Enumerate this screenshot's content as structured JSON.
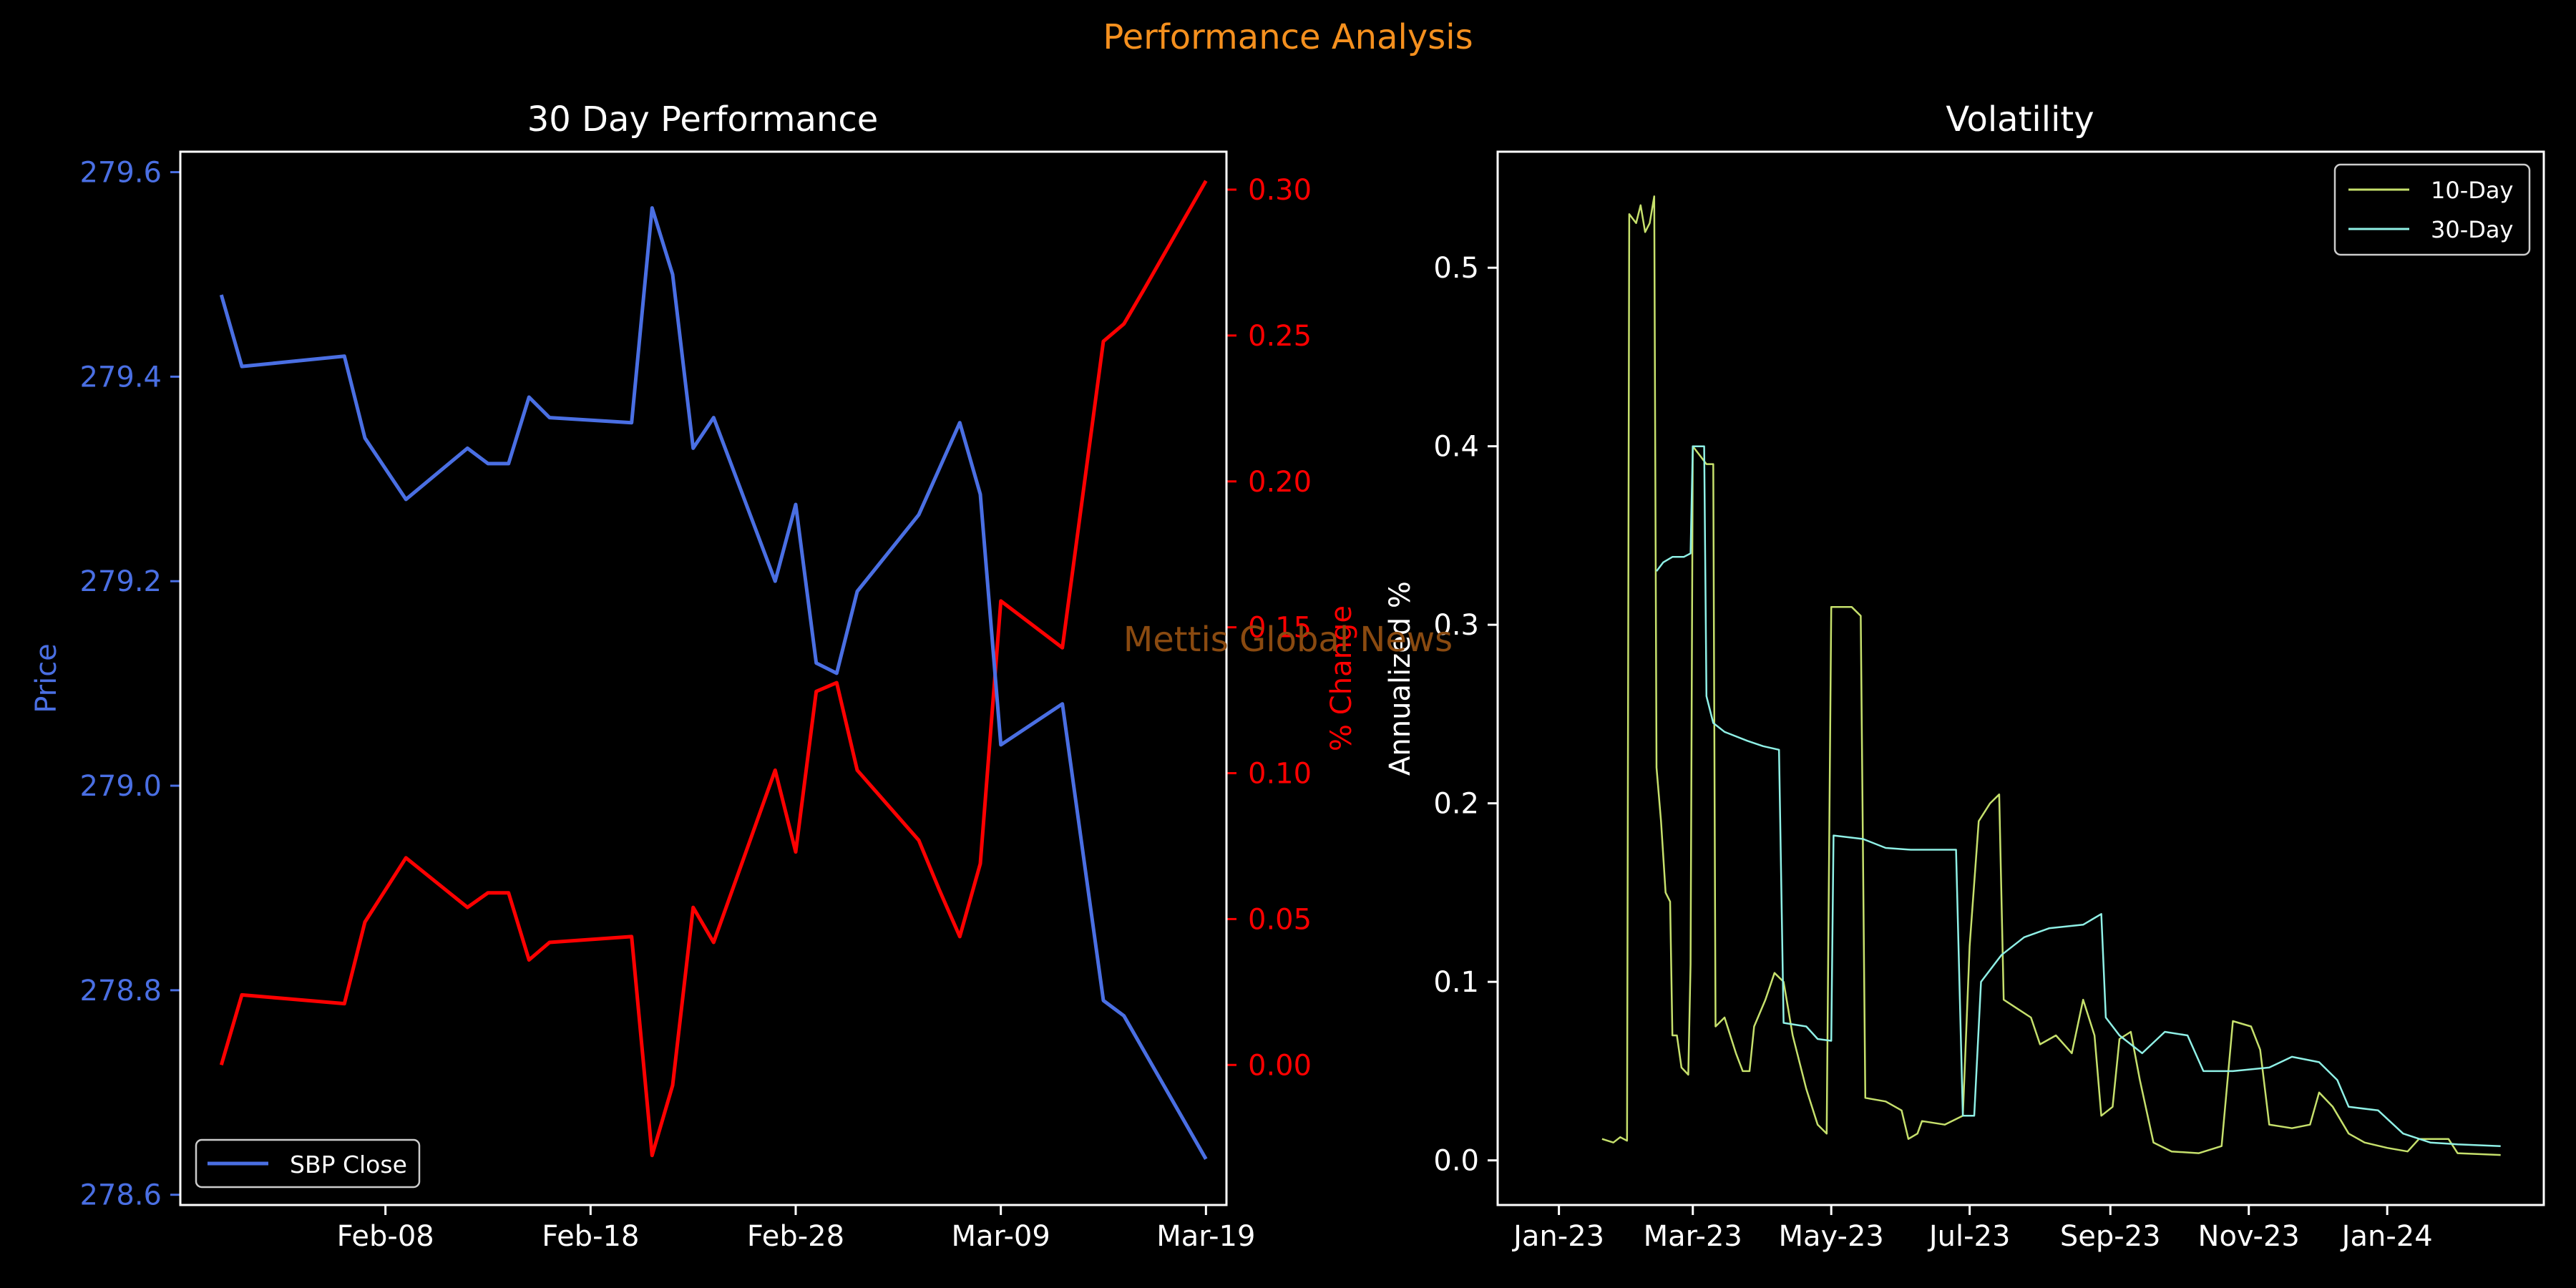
{
  "figure": {
    "suptitle": "Performance Analysis",
    "watermark": "Mettis Global News",
    "colors": {
      "background": "#000000",
      "suptitle": "#f5901e",
      "watermark": "#8a4a10",
      "price": "#4a6fe3",
      "pct_change": "#ff0000",
      "axes": "#ffffff",
      "vol10": "#c6e06c",
      "vol30": "#8ff0e6"
    }
  },
  "chart_data": [
    {
      "type": "line",
      "title": "30 Day Performance",
      "xlabel": "",
      "ylabel": "Price",
      "ylabel_right": "% Change",
      "x_ticks": [
        "Feb-08",
        "Feb-18",
        "Feb-28",
        "Mar-09",
        "Mar-19"
      ],
      "y_ticks": [
        "278.6",
        "278.8",
        "279.0",
        "279.2",
        "279.4",
        "279.6"
      ],
      "y_right_ticks": [
        "0.00",
        "0.05",
        "0.10",
        "0.15",
        "0.20",
        "0.25",
        "0.30"
      ],
      "xlim": [
        "2024-01-29",
        "2024-03-20"
      ],
      "ylim": [
        278.59,
        279.62
      ],
      "y_right_lim": [
        -0.048,
        0.313
      ],
      "legend": {
        "position": "lower-left",
        "entries": [
          "SBP Close"
        ]
      },
      "x": [
        "2024-01-31",
        "2024-02-01",
        "2024-02-06",
        "2024-02-07",
        "2024-02-09",
        "2024-02-12",
        "2024-02-13",
        "2024-02-14",
        "2024-02-15",
        "2024-02-16",
        "2024-02-20",
        "2024-02-21",
        "2024-02-22",
        "2024-02-23",
        "2024-02-24",
        "2024-02-27",
        "2024-02-28",
        "2024-02-29",
        "2024-03-01",
        "2024-03-02",
        "2024-03-05",
        "2024-03-06",
        "2024-03-07",
        "2024-03-08",
        "2024-03-09",
        "2024-03-12",
        "2024-03-14",
        "2024-03-15",
        "2024-03-16",
        "2024-03-19"
      ],
      "series": [
        {
          "name": "SBP Close",
          "axis": "left",
          "values": [
            279.48,
            279.41,
            279.42,
            279.34,
            279.28,
            279.33,
            279.315,
            279.315,
            279.38,
            279.36,
            279.355,
            279.565,
            279.5,
            279.33,
            279.36,
            279.2,
            279.275,
            279.12,
            279.11,
            279.19,
            279.265,
            279.31,
            279.355,
            279.285,
            279.04,
            279.08,
            278.79,
            278.775,
            278.74,
            278.635
          ]
        },
        {
          "axis": "right",
          "values": [
            0.0,
            0.024,
            0.021,
            0.049,
            0.071,
            0.054,
            0.059,
            0.059,
            0.036,
            0.042,
            0.044,
            -0.031,
            -0.007,
            0.054,
            0.042,
            0.101,
            0.073,
            0.128,
            0.131,
            0.101,
            0.077,
            0.06,
            0.044,
            0.069,
            0.159,
            0.143,
            0.248,
            0.254,
            0.266,
            0.303
          ]
        }
      ]
    },
    {
      "type": "line",
      "title": "Volatility",
      "xlabel": "",
      "ylabel": "Annualized %",
      "x_ticks": [
        "Jan-23",
        "Mar-23",
        "May-23",
        "Jul-23",
        "Sep-23",
        "Nov-23",
        "Jan-24"
      ],
      "y_ticks": [
        "0.0",
        "0.1",
        "0.2",
        "0.3",
        "0.4",
        "0.5"
      ],
      "xlim": [
        "2022-12-05",
        "2024-03-10"
      ],
      "ylim": [
        -0.025,
        0.565
      ],
      "legend": {
        "position": "top-right",
        "entries": [
          "10-Day",
          "30-Day"
        ]
      },
      "series": [
        {
          "name": "10-Day",
          "points": [
            [
              "2023-01-20",
              0.012
            ],
            [
              "2023-01-25",
              0.01
            ],
            [
              "2023-01-28",
              0.013
            ],
            [
              "2023-01-31",
              0.011
            ],
            [
              "2023-02-01",
              0.53
            ],
            [
              "2023-02-04",
              0.525
            ],
            [
              "2023-02-06",
              0.535
            ],
            [
              "2023-02-08",
              0.52
            ],
            [
              "2023-02-10",
              0.525
            ],
            [
              "2023-02-12",
              0.54
            ],
            [
              "2023-02-13",
              0.22
            ],
            [
              "2023-02-15",
              0.19
            ],
            [
              "2023-02-17",
              0.15
            ],
            [
              "2023-02-19",
              0.145
            ],
            [
              "2023-02-20",
              0.07
            ],
            [
              "2023-02-22",
              0.07
            ],
            [
              "2023-02-24",
              0.052
            ],
            [
              "2023-02-27",
              0.048
            ],
            [
              "2023-02-28",
              0.11
            ],
            [
              "2023-03-01",
              0.4
            ],
            [
              "2023-03-04",
              0.395
            ],
            [
              "2023-03-07",
              0.39
            ],
            [
              "2023-03-10",
              0.39
            ],
            [
              "2023-03-11",
              0.075
            ],
            [
              "2023-03-15",
              0.08
            ],
            [
              "2023-03-20",
              0.06
            ],
            [
              "2023-03-23",
              0.05
            ],
            [
              "2023-03-26",
              0.05
            ],
            [
              "2023-03-28",
              0.075
            ],
            [
              "2023-04-02",
              0.09
            ],
            [
              "2023-04-06",
              0.105
            ],
            [
              "2023-04-10",
              0.1
            ],
            [
              "2023-04-14",
              0.07
            ],
            [
              "2023-04-20",
              0.04
            ],
            [
              "2023-04-25",
              0.02
            ],
            [
              "2023-04-29",
              0.015
            ],
            [
              "2023-05-01",
              0.31
            ],
            [
              "2023-05-10",
              0.31
            ],
            [
              "2023-05-14",
              0.305
            ],
            [
              "2023-05-16",
              0.035
            ],
            [
              "2023-05-25",
              0.033
            ],
            [
              "2023-06-01",
              0.028
            ],
            [
              "2023-06-04",
              0.012
            ],
            [
              "2023-06-08",
              0.015
            ],
            [
              "2023-06-10",
              0.022
            ],
            [
              "2023-06-20",
              0.02
            ],
            [
              "2023-06-28",
              0.025
            ],
            [
              "2023-07-01",
              0.12
            ],
            [
              "2023-07-05",
              0.19
            ],
            [
              "2023-07-10",
              0.2
            ],
            [
              "2023-07-14",
              0.205
            ],
            [
              "2023-07-16",
              0.09
            ],
            [
              "2023-07-22",
              0.085
            ],
            [
              "2023-07-28",
              0.08
            ],
            [
              "2023-08-01",
              0.065
            ],
            [
              "2023-08-08",
              0.07
            ],
            [
              "2023-08-15",
              0.06
            ],
            [
              "2023-08-20",
              0.09
            ],
            [
              "2023-08-25",
              0.07
            ],
            [
              "2023-08-28",
              0.025
            ],
            [
              "2023-09-02",
              0.03
            ],
            [
              "2023-09-05",
              0.068
            ],
            [
              "2023-09-10",
              0.072
            ],
            [
              "2023-09-14",
              0.045
            ],
            [
              "2023-09-20",
              0.01
            ],
            [
              "2023-09-28",
              0.005
            ],
            [
              "2023-10-10",
              0.004
            ],
            [
              "2023-10-20",
              0.008
            ],
            [
              "2023-10-25",
              0.078
            ],
            [
              "2023-11-02",
              0.075
            ],
            [
              "2023-11-06",
              0.062
            ],
            [
              "2023-11-10",
              0.02
            ],
            [
              "2023-11-20",
              0.018
            ],
            [
              "2023-11-28",
              0.02
            ],
            [
              "2023-12-02",
              0.038
            ],
            [
              "2023-12-08",
              0.03
            ],
            [
              "2023-12-15",
              0.015
            ],
            [
              "2023-12-22",
              0.01
            ],
            [
              "2024-01-01",
              0.007
            ],
            [
              "2024-01-10",
              0.005
            ],
            [
              "2024-01-15",
              0.012
            ],
            [
              "2024-01-28",
              0.012
            ],
            [
              "2024-02-01",
              0.004
            ],
            [
              "2024-02-20",
              0.003
            ]
          ]
        },
        {
          "name": "30-Day",
          "points": [
            [
              "2023-02-13",
              0.33
            ],
            [
              "2023-02-16",
              0.335
            ],
            [
              "2023-02-20",
              0.338
            ],
            [
              "2023-02-25",
              0.338
            ],
            [
              "2023-02-28",
              0.34
            ],
            [
              "2023-03-01",
              0.4
            ],
            [
              "2023-03-06",
              0.4
            ],
            [
              "2023-03-07",
              0.26
            ],
            [
              "2023-03-10",
              0.245
            ],
            [
              "2023-03-15",
              0.24
            ],
            [
              "2023-03-25",
              0.235
            ],
            [
              "2023-04-01",
              0.232
            ],
            [
              "2023-04-08",
              0.23
            ],
            [
              "2023-04-10",
              0.077
            ],
            [
              "2023-04-20",
              0.075
            ],
            [
              "2023-04-25",
              0.068
            ],
            [
              "2023-05-01",
              0.067
            ],
            [
              "2023-05-02",
              0.182
            ],
            [
              "2023-05-15",
              0.18
            ],
            [
              "2023-05-25",
              0.175
            ],
            [
              "2023-06-05",
              0.174
            ],
            [
              "2023-06-25",
              0.174
            ],
            [
              "2023-06-28",
              0.025
            ],
            [
              "2023-07-03",
              0.025
            ],
            [
              "2023-07-06",
              0.1
            ],
            [
              "2023-07-15",
              0.115
            ],
            [
              "2023-07-25",
              0.125
            ],
            [
              "2023-08-05",
              0.13
            ],
            [
              "2023-08-20",
              0.132
            ],
            [
              "2023-08-28",
              0.138
            ],
            [
              "2023-08-30",
              0.08
            ],
            [
              "2023-09-05",
              0.07
            ],
            [
              "2023-09-15",
              0.06
            ],
            [
              "2023-09-25",
              0.072
            ],
            [
              "2023-10-05",
              0.07
            ],
            [
              "2023-10-12",
              0.05
            ],
            [
              "2023-10-25",
              0.05
            ],
            [
              "2023-11-10",
              0.052
            ],
            [
              "2023-11-20",
              0.058
            ],
            [
              "2023-12-02",
              0.055
            ],
            [
              "2023-12-10",
              0.045
            ],
            [
              "2023-12-15",
              0.03
            ],
            [
              "2023-12-28",
              0.028
            ],
            [
              "2024-01-08",
              0.015
            ],
            [
              "2024-01-20",
              0.01
            ],
            [
              "2024-02-01",
              0.009
            ],
            [
              "2024-02-20",
              0.008
            ]
          ]
        }
      ]
    }
  ]
}
